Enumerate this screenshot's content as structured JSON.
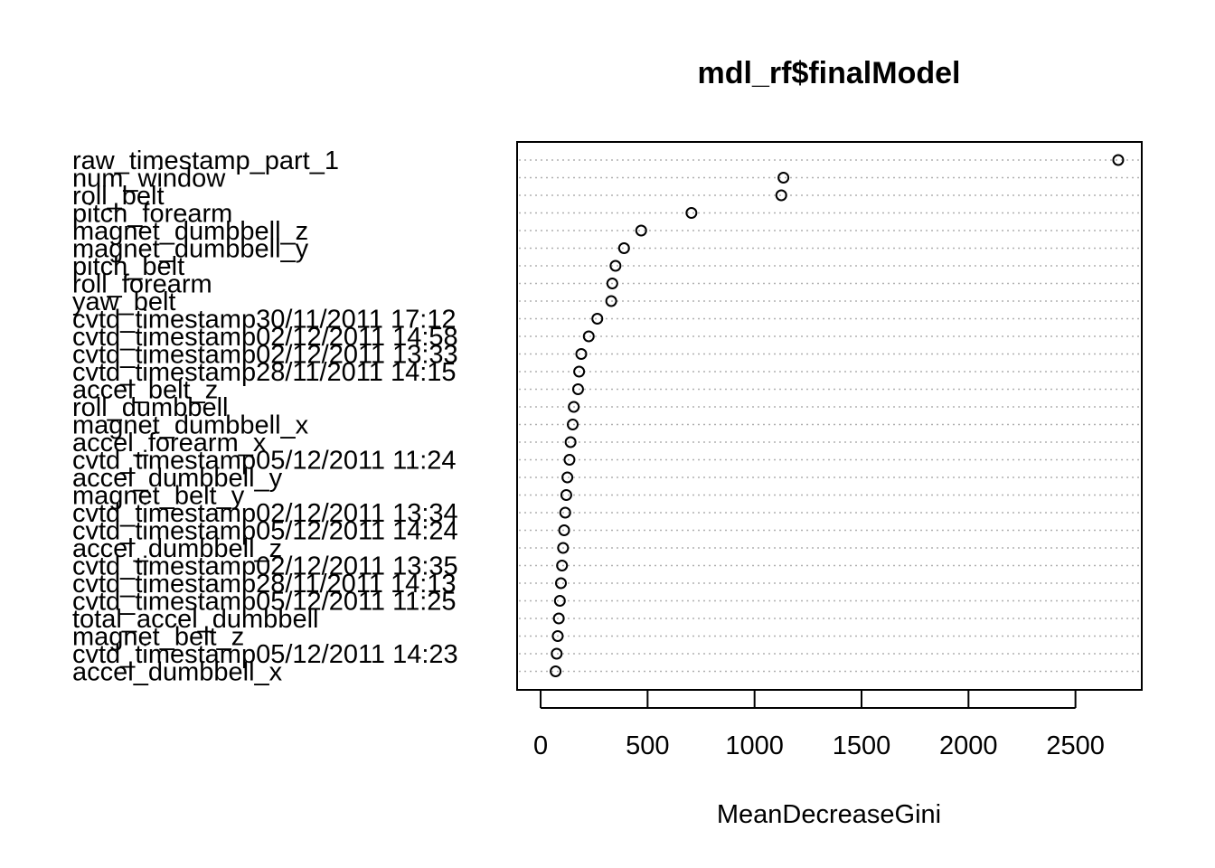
{
  "chart_data": {
    "type": "scatter",
    "title": "mdl_rf$finalModel",
    "xlabel": "MeanDecreaseGini",
    "ylabel": "",
    "xlim": [
      -110,
      2810
    ],
    "xticks": [
      0,
      500,
      1000,
      1500,
      2000,
      2500
    ],
    "grid": true,
    "categories": [
      "raw_timestamp_part_1",
      "num_window",
      "roll_belt",
      "pitch_forearm",
      "magnet_dumbbell_z",
      "magnet_dumbbell_y",
      "pitch_belt",
      "roll_forearm",
      "yaw_belt",
      "cvtd_timestamp30/11/2011 17:12",
      "cvtd_timestamp02/12/2011 14:58",
      "cvtd_timestamp02/12/2011 13:33",
      "cvtd_timestamp28/11/2011 14:15",
      "accel_belt_z",
      "roll_dumbbell",
      "magnet_dumbbell_x",
      "accel_forearm_x",
      "cvtd_timestamp05/12/2011 11:24",
      "accel_dumbbell_y",
      "magnet_belt_y",
      "cvtd_timestamp02/12/2011 13:34",
      "cvtd_timestamp05/12/2011 14:24",
      "accel_dumbbell_z",
      "cvtd_timestamp02/12/2011 13:35",
      "cvtd_timestamp28/11/2011 14:13",
      "cvtd_timestamp05/12/2011 11:25",
      "total_accel_dumbbell",
      "magnet_belt_z",
      "cvtd_timestamp05/12/2011 14:23",
      "accel_dumbbell_x"
    ],
    "values": [
      2700,
      1135,
      1125,
      705,
      470,
      390,
      350,
      335,
      330,
      265,
      225,
      190,
      180,
      175,
      155,
      150,
      140,
      135,
      125,
      120,
      115,
      110,
      105,
      100,
      95,
      90,
      85,
      80,
      75,
      70
    ]
  }
}
